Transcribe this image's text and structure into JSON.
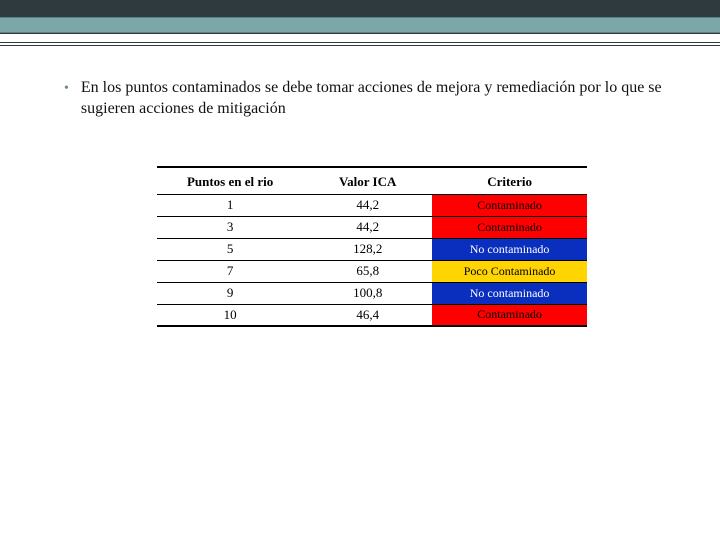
{
  "bullet": {
    "text": "En los puntos contaminados se debe tomar acciones de mejora y remediación por lo que se sugieren acciones de mitigación"
  },
  "table": {
    "col_widths": [
      "34%",
      "30%",
      "36%"
    ],
    "headers": {
      "c0": "Puntos en el rio",
      "c1": "Valor ICA",
      "c2": "Criterio"
    },
    "colors": {
      "contaminado_bg": "#ff0000",
      "contaminado_fg": "#000000",
      "no_contaminado_bg": "#0a2fbf",
      "no_contaminado_fg": "#ffffff",
      "poco_bg": "#ffd400",
      "poco_fg": "#000000"
    },
    "rows": [
      {
        "punto": "1",
        "valor": "44,2",
        "criterio": "Contaminado",
        "kind": "contaminado"
      },
      {
        "punto": "3",
        "valor": "44,2",
        "criterio": "Contaminado",
        "kind": "contaminado"
      },
      {
        "punto": "5",
        "valor": "128,2",
        "criterio": "No contaminado",
        "kind": "no_contaminado"
      },
      {
        "punto": "7",
        "valor": "65,8",
        "criterio": "Poco Contaminado",
        "kind": "poco"
      },
      {
        "punto": "9",
        "valor": "100,8",
        "criterio": "No contaminado",
        "kind": "no_contaminado"
      },
      {
        "punto": "10",
        "valor": "46,4",
        "criterio": "Contaminado",
        "kind": "contaminado"
      }
    ]
  },
  "decor": {
    "dark": "#2f3a3f",
    "teal": "#7ba7a8"
  }
}
